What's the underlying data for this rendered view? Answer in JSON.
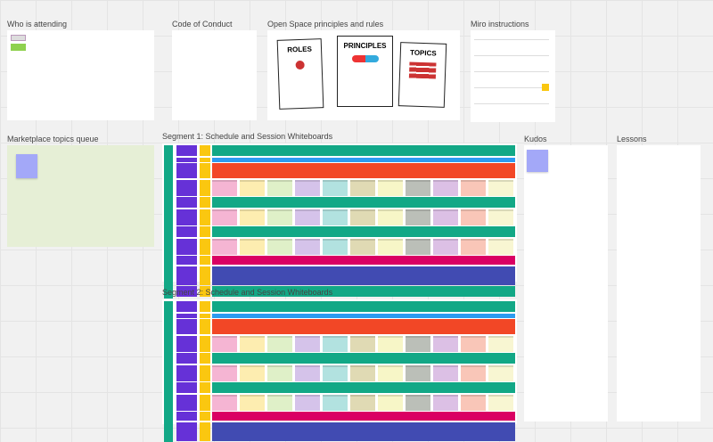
{
  "frames": {
    "attending": "Who is attending",
    "conduct": "Code of Conduct",
    "principles": "Open Space principles and rules",
    "miro": "Miro instructions",
    "marketplace": "Marketplace topics queue",
    "segment1": "Segment 1: Schedule and Session Whiteboards",
    "segment2": "Segment 2: Schedule and Session Whiteboards",
    "kudos": "Kudos",
    "lessons": "Lessons"
  },
  "poster": {
    "roles": "ROLES",
    "principles": "PRINCIPLES",
    "topics": "TOPICS"
  },
  "colors": {
    "green": "#12a886",
    "blue": "#2d9bf0",
    "red": "#f24726",
    "magenta": "#da0063",
    "indigo": "#414bb2",
    "purple": "#6631d7",
    "yellow": "#fac710",
    "marketplace_bg": "#e6efd6",
    "queue_sticky": "#a6ccf5"
  },
  "session_colors": [
    "#f5b5d3",
    "#fdedb0",
    "#dff0c8",
    "#d5c3ea",
    "#b2e2e0",
    "#e0dab4",
    "#f7f6c7",
    "#bbbfb8",
    "#dcc0e5",
    "#f9c6b8",
    "#f8f6d2"
  ],
  "segment1_rows": [
    "green",
    "blue",
    "red",
    "sessions",
    "green",
    "sessions",
    "green",
    "sessions",
    "magenta",
    "indigo",
    "green"
  ],
  "segment2_rows": [
    "green",
    "blue",
    "red",
    "sessions",
    "green",
    "sessions",
    "green",
    "sessions",
    "magenta",
    "indigo"
  ]
}
